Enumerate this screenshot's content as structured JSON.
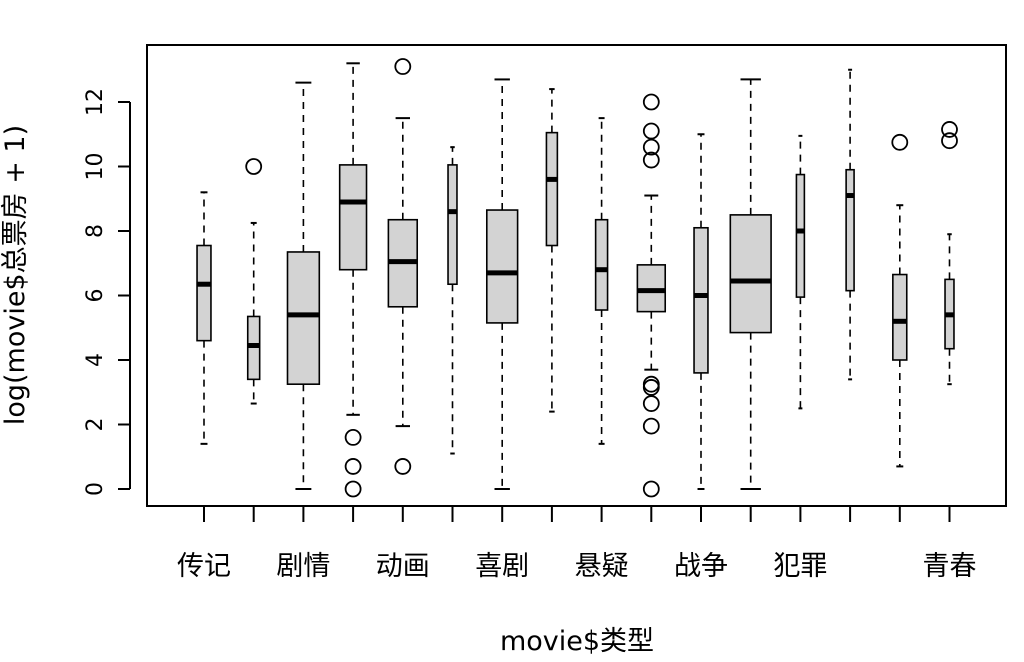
{
  "chart_data": {
    "type": "boxplot",
    "title": "",
    "xlabel": "movie$类型",
    "ylabel": "log(movie$总票房 + 1)",
    "ylim": [
      0,
      12.5
    ],
    "yticks": [
      0,
      2,
      4,
      6,
      8,
      10,
      12
    ],
    "grid": false,
    "legend": "none",
    "box_fill": "#d3d3d3",
    "stroke": "#000000",
    "x_tick_labels": [
      {
        "index": 0,
        "text": "传记"
      },
      {
        "index": 2,
        "text": "剧情"
      },
      {
        "index": 4,
        "text": "动画"
      },
      {
        "index": 6,
        "text": "喜剧"
      },
      {
        "index": 8,
        "text": "悬疑"
      },
      {
        "index": 10,
        "text": "战争"
      },
      {
        "index": 12,
        "text": "犯罪"
      },
      {
        "index": 15,
        "text": "青春"
      }
    ],
    "boxes": [
      {
        "q1": 4.6,
        "median": 6.35,
        "q3": 7.55,
        "whisker_low": 1.4,
        "whisker_high": 9.2,
        "outliers": [],
        "relwidth": 0.28
      },
      {
        "q1": 3.4,
        "median": 4.45,
        "q3": 5.35,
        "whisker_low": 2.65,
        "whisker_high": 8.25,
        "outliers": [
          10.0
        ],
        "relwidth": 0.24
      },
      {
        "q1": 3.25,
        "median": 5.4,
        "q3": 7.35,
        "whisker_low": 0.0,
        "whisker_high": 12.6,
        "outliers": [],
        "relwidth": 0.64
      },
      {
        "q1": 6.8,
        "median": 8.9,
        "q3": 10.05,
        "whisker_low": 2.3,
        "whisker_high": 13.2,
        "outliers": [
          0.0,
          0.7,
          1.6
        ],
        "relwidth": 0.54
      },
      {
        "q1": 5.65,
        "median": 7.05,
        "q3": 8.35,
        "whisker_low": 1.95,
        "whisker_high": 11.5,
        "outliers": [
          0.7,
          13.1
        ],
        "relwidth": 0.58
      },
      {
        "q1": 6.35,
        "median": 8.6,
        "q3": 10.05,
        "whisker_low": 1.1,
        "whisker_high": 10.6,
        "outliers": [],
        "relwidth": 0.18
      },
      {
        "q1": 5.15,
        "median": 6.7,
        "q3": 8.65,
        "whisker_low": 0.0,
        "whisker_high": 12.7,
        "outliers": [],
        "relwidth": 0.62
      },
      {
        "q1": 7.55,
        "median": 9.6,
        "q3": 11.05,
        "whisker_low": 2.4,
        "whisker_high": 12.4,
        "outliers": [],
        "relwidth": 0.22
      },
      {
        "q1": 5.55,
        "median": 6.8,
        "q3": 8.35,
        "whisker_low": 1.4,
        "whisker_high": 11.5,
        "outliers": [],
        "relwidth": 0.24
      },
      {
        "q1": 5.5,
        "median": 6.15,
        "q3": 6.95,
        "whisker_low": 3.7,
        "whisker_high": 9.1,
        "outliers": [
          0.0,
          1.95,
          2.65,
          3.15,
          3.25,
          10.2,
          10.6,
          11.1,
          12.0
        ],
        "relwidth": 0.56
      },
      {
        "q1": 3.6,
        "median": 6.0,
        "q3": 8.1,
        "whisker_low": 0.0,
        "whisker_high": 11.0,
        "outliers": [],
        "relwidth": 0.28
      },
      {
        "q1": 4.85,
        "median": 6.45,
        "q3": 8.5,
        "whisker_low": 0.0,
        "whisker_high": 12.7,
        "outliers": [],
        "relwidth": 0.82
      },
      {
        "q1": 5.95,
        "median": 8.0,
        "q3": 9.75,
        "whisker_low": 2.5,
        "whisker_high": 10.95,
        "outliers": [],
        "relwidth": 0.16
      },
      {
        "q1": 6.15,
        "median": 9.1,
        "q3": 9.9,
        "whisker_low": 3.4,
        "whisker_high": 13.0,
        "outliers": [],
        "relwidth": 0.16
      },
      {
        "q1": 4.0,
        "median": 5.2,
        "q3": 6.65,
        "whisker_low": 0.7,
        "whisker_high": 8.8,
        "outliers": [
          10.75
        ],
        "relwidth": 0.28
      },
      {
        "q1": 4.35,
        "median": 5.4,
        "q3": 6.5,
        "whisker_low": 3.25,
        "whisker_high": 7.9,
        "outliers": [
          10.8,
          11.15
        ],
        "relwidth": 0.18
      }
    ]
  }
}
